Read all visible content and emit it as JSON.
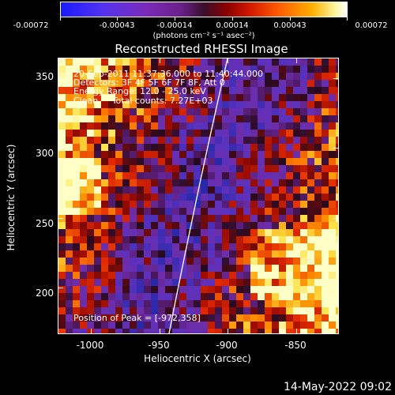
{
  "colorbar": {
    "ticks": [
      "-0.00072",
      "-0.00043",
      "-0.00014",
      "0.00014",
      "0.00043",
      "0.00072"
    ],
    "units": "(photons cm⁻² s⁻¹ asec⁻²)"
  },
  "title": "Reconstructed RHESSI Image",
  "info": {
    "time": "20-Sep-2011 11:37:36.000 to 11:40:44.000",
    "detectors": "Detectors: 3F 4F 5F 6F 7F 8F, Att 0",
    "energy": "Energy Range: 12.0 - 25.0 keV",
    "clean": "Clean     Total counts: 7.27E+03",
    "peak": "Position of Peak = [-972,358]"
  },
  "axes": {
    "xlabel": "Heliocentric X (arcsec)",
    "ylabel": "Heliocentric Y (arcsec)",
    "xticks": [
      "-1000",
      "-950",
      "-900",
      "-850"
    ],
    "yticks": [
      "200",
      "250",
      "300",
      "350"
    ]
  },
  "footer": {
    "date": "14-May-2022 09:02"
  },
  "colors": {
    "background": "#000000",
    "text": "#ffffff",
    "map_low": "#4a1a8a",
    "map_high": "#ffff80"
  }
}
